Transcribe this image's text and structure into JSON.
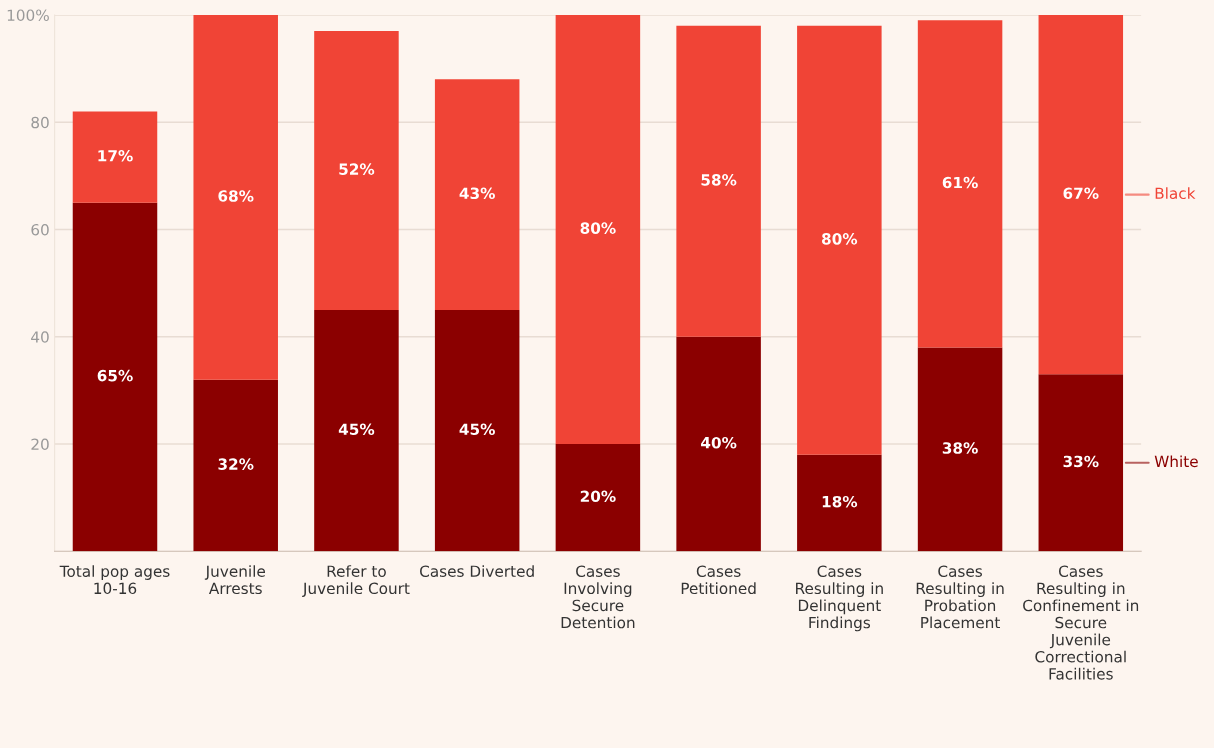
{
  "chart_data": {
    "type": "bar",
    "stacked": true,
    "categories": [
      "Total pop ages 10-16",
      "Juvenile Arrests",
      "Refer to Juvenile Court",
      "Cases Diverted",
      "Cases Involving Secure Detention",
      "Cases Petitioned",
      "Cases Resulting in Delinquent Findings",
      "Cases Resulting in Probation Placement",
      "Cases Resulting in Confinement in Secure Juvenile Correctional Facilities"
    ],
    "series": [
      {
        "name": "White",
        "color": "#8b0000",
        "values": [
          65,
          32,
          45,
          45,
          20,
          40,
          18,
          38,
          33
        ],
        "value_labels": [
          "65%",
          "32%",
          "45%",
          "45%",
          "20%",
          "40%",
          "18%",
          "38%",
          "33%"
        ]
      },
      {
        "name": "Black",
        "color": "#f04436",
        "values": [
          17,
          68,
          52,
          43,
          80,
          58,
          80,
          61,
          67
        ],
        "value_labels": [
          "17%",
          "68%",
          "52%",
          "43%",
          "80%",
          "58%",
          "80%",
          "61%",
          "67%"
        ]
      }
    ],
    "ylim": [
      0,
      100
    ],
    "yticks": [
      20,
      40,
      60,
      80,
      {
        "value": 100,
        "label": "100%"
      }
    ],
    "grid": "y",
    "legend": "right"
  }
}
